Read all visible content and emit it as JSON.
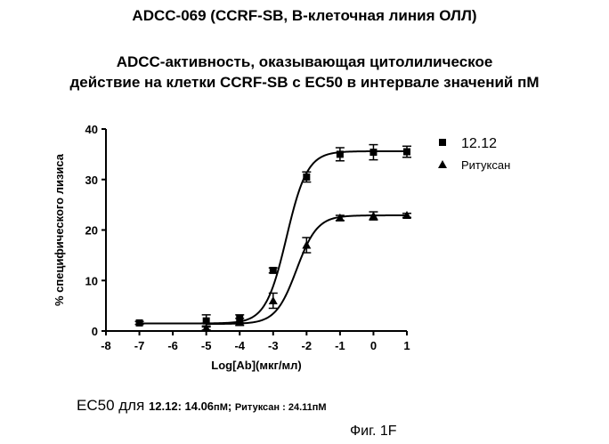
{
  "header": {
    "title": "ADCC-069 (CCRF-SB, B-клеточная линия ОЛЛ)",
    "subtitle_line1": "ADCC-активность, оказывающая цитолилическое",
    "subtitle_line2": "действие на клетки CCRF-SB с EC50 в интервале значений пМ"
  },
  "chart_data": {
    "type": "scatter",
    "xlabel": "Log[Ab](мкг/мл)",
    "ylabel": "% специфического лизиса",
    "xlim": [
      -8,
      1
    ],
    "ylim": [
      0,
      40
    ],
    "xticks": [
      -8,
      -7,
      -6,
      -5,
      -4,
      -3,
      -2,
      -1,
      0,
      1
    ],
    "yticks": [
      0,
      10,
      20,
      30,
      40
    ],
    "legend_position": "top-right",
    "series": [
      {
        "name": "12.12",
        "marker": "square",
        "x": [
          -7,
          -5,
          -4,
          -3,
          -2,
          -1,
          0,
          1
        ],
        "y": [
          1.6,
          2.0,
          2.4,
          12.0,
          30.5,
          35.0,
          35.4,
          35.5
        ],
        "err": [
          0.3,
          1.2,
          0.8,
          0.5,
          1.0,
          1.3,
          1.5,
          1.1
        ],
        "fit": {
          "bottom": 1.5,
          "top": 35.6,
          "logec50": -2.6,
          "hill": 1.4
        }
      },
      {
        "name": "Ритуксан",
        "marker": "triangle",
        "x": [
          -5,
          -4,
          -3,
          -2,
          -1,
          0,
          1
        ],
        "y": [
          0.6,
          1.8,
          6.0,
          17.0,
          22.4,
          22.8,
          22.9
        ],
        "err": [
          0.4,
          0.7,
          1.5,
          1.5,
          0.5,
          0.8,
          0.4
        ],
        "fit": {
          "bottom": 1.4,
          "top": 22.9,
          "logec50": -2.3,
          "hill": 1.4
        }
      }
    ]
  },
  "ec50_text": {
    "prefix": "EC50",
    "for_word": " для ",
    "label_1212": "12.12: 14.06",
    "unit_1": "пМ",
    "sep": "; ",
    "label_rit": "Ритуксан : 24.11",
    "unit_2": "пМ"
  },
  "figure_label": "Фиг. 1F",
  "colors": {
    "ink": "#000000",
    "background": "#ffffff"
  }
}
